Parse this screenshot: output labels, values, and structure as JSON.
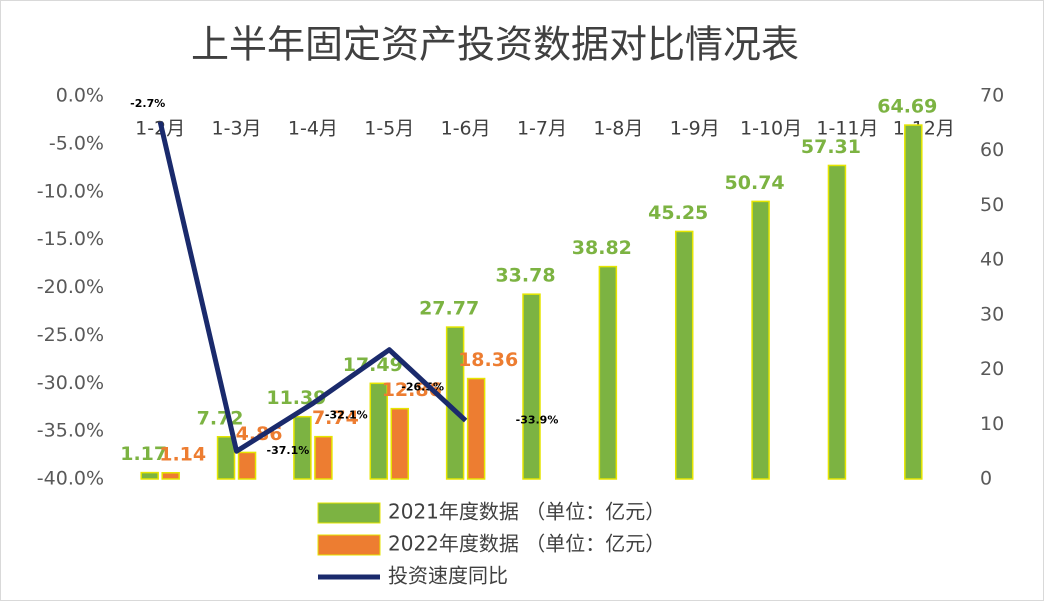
{
  "chart_data": {
    "type": "bar",
    "title": "上半年固定资产投资数据对比情况表",
    "categories": [
      "1-2月",
      "1-3月",
      "1-4月",
      "1-5月",
      "1-6月",
      "1-7月",
      "1-8月",
      "1-9月",
      "1-10月",
      "1-11月",
      "1-12月"
    ],
    "series": [
      {
        "name": "2021年度数据 （单位：亿元）",
        "type": "bar",
        "axis": "y2",
        "color": "#7cb342",
        "values": [
          1.17,
          7.72,
          11.39,
          17.49,
          27.77,
          33.78,
          38.82,
          45.25,
          50.74,
          57.31,
          64.69
        ]
      },
      {
        "name": "2022年度数据 （单位：亿元）",
        "type": "bar",
        "axis": "y2",
        "color": "#ed7d31",
        "values": [
          1.14,
          4.86,
          7.74,
          12.86,
          18.36,
          null,
          null,
          null,
          null,
          null,
          null
        ]
      },
      {
        "name": "投资速度同比",
        "type": "line",
        "axis": "y",
        "color": "#1a2a6c",
        "values": [
          -2.7,
          -37.1,
          -32.1,
          -26.5,
          -33.9,
          null,
          null,
          null,
          null,
          null,
          null
        ],
        "value_labels": [
          "-2.7%",
          "-37.1%",
          "-32.1%",
          "-26.5%",
          "-33.9%",
          null,
          null,
          null,
          null,
          null,
          null
        ]
      }
    ],
    "ylim": [
      -40,
      0
    ],
    "yticks": [
      {
        "value": 0,
        "label": "0.0%"
      },
      {
        "value": -5,
        "label": "-5.0%"
      },
      {
        "value": -10,
        "label": "-10.0%"
      },
      {
        "value": -15,
        "label": "-15.0%"
      },
      {
        "value": -20,
        "label": "-20.0%"
      },
      {
        "value": -25,
        "label": "-25.0%"
      },
      {
        "value": -30,
        "label": "-30.0%"
      },
      {
        "value": -35,
        "label": "-35.0%"
      },
      {
        "value": -40,
        "label": "-40.0%"
      }
    ],
    "y2lim": [
      0,
      70
    ],
    "y2ticks": [
      0,
      10,
      20,
      30,
      40,
      50,
      60,
      70
    ],
    "grid": false
  }
}
